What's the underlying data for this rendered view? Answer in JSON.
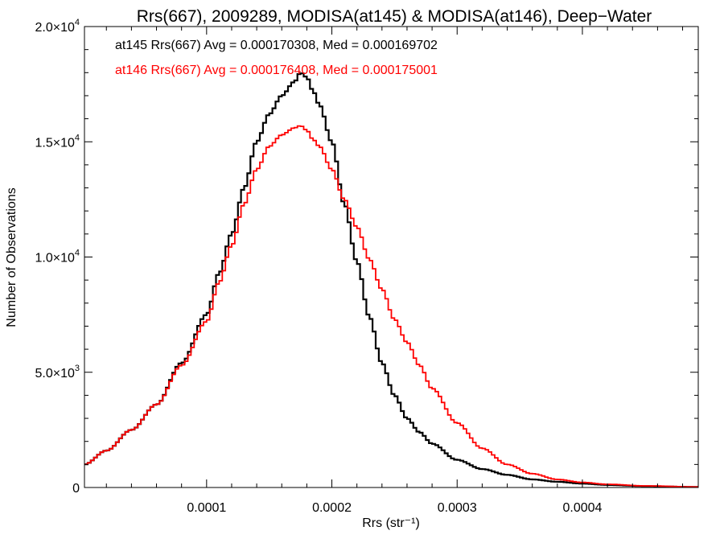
{
  "chart_data": {
    "type": "line",
    "title": "Rrs(667), 2009289, MODISA(at145) & MODISA(at146), Deep−Water",
    "xlabel": "Rrs (str⁻¹)",
    "ylabel": "Number of Observations",
    "xlim": [
      2.5e-06,
      0.0004925
    ],
    "ylim": [
      0,
      20000
    ],
    "x_ticks": [
      {
        "value": 0.0001,
        "label": "0.0001"
      },
      {
        "value": 0.0002,
        "label": "0.0002"
      },
      {
        "value": 0.0003,
        "label": "0.0003"
      },
      {
        "value": 0.0004,
        "label": "0.0004"
      }
    ],
    "y_ticks": [
      {
        "value": 0,
        "mantissa": "0",
        "exponent": ""
      },
      {
        "value": 5000,
        "mantissa": "5.0×10",
        "exponent": "3"
      },
      {
        "value": 10000,
        "mantissa": "1.0×10",
        "exponent": "4"
      },
      {
        "value": 15000,
        "mantissa": "1.5×10",
        "exponent": "4"
      },
      {
        "value": 20000,
        "mantissa": "2.0×10",
        "exponent": "4"
      }
    ],
    "grid": false,
    "annotations": [
      {
        "text": "at145 Rrs(667) Avg = 0.000170308, Med = 0.000169702",
        "color": "#000000"
      },
      {
        "text": "at146 Rrs(667) Avg = 0.000176408, Med = 0.000175001",
        "color": "#ff0000"
      }
    ],
    "series": [
      {
        "color": "#000000",
        "step": true,
        "x": [
          2.5e-06,
          2e-05,
          4e-05,
          6e-05,
          8e-05,
          0.0001,
          0.00011,
          0.00012,
          0.00013,
          0.00014,
          0.00015,
          0.00016,
          0.00017,
          0.000175,
          0.00018,
          0.000185,
          0.00019,
          0.0002,
          0.00021,
          0.00022,
          0.00023,
          0.00024,
          0.00025,
          0.00026,
          0.00027,
          0.00028,
          0.0003,
          0.00032,
          0.00034,
          0.00036,
          0.00038,
          0.0004,
          0.00042,
          0.00045,
          0.0004925
        ],
        "y": [
          1000,
          1600,
          2500,
          3600,
          5400,
          7500,
          9300,
          11000,
          13000,
          15000,
          16200,
          17000,
          17600,
          18000,
          17800,
          17200,
          16600,
          15000,
          12300,
          9800,
          7400,
          5400,
          4000,
          3000,
          2400,
          1900,
          1200,
          800,
          550,
          350,
          250,
          170,
          110,
          60,
          20
        ]
      },
      {
        "color": "#ff0000",
        "step": true,
        "x": [
          2.5e-06,
          2e-05,
          4e-05,
          6e-05,
          8e-05,
          0.0001,
          0.00011,
          0.00012,
          0.00013,
          0.00014,
          0.00015,
          0.00016,
          0.00017,
          0.000175,
          0.00018,
          0.000185,
          0.00019,
          0.0002,
          0.00021,
          0.00022,
          0.00023,
          0.00024,
          0.00025,
          0.00026,
          0.00027,
          0.00028,
          0.0003,
          0.00032,
          0.00034,
          0.00036,
          0.00038,
          0.0004,
          0.00042,
          0.00045,
          0.0004925
        ],
        "y": [
          1000,
          1600,
          2500,
          3600,
          5300,
          7200,
          8900,
          10500,
          12300,
          13800,
          14800,
          15300,
          15600,
          15700,
          15500,
          15100,
          14800,
          13800,
          12500,
          11300,
          9900,
          8600,
          7300,
          6300,
          5300,
          4300,
          2800,
          1700,
          1000,
          600,
          350,
          220,
          140,
          70,
          25
        ]
      }
    ]
  }
}
